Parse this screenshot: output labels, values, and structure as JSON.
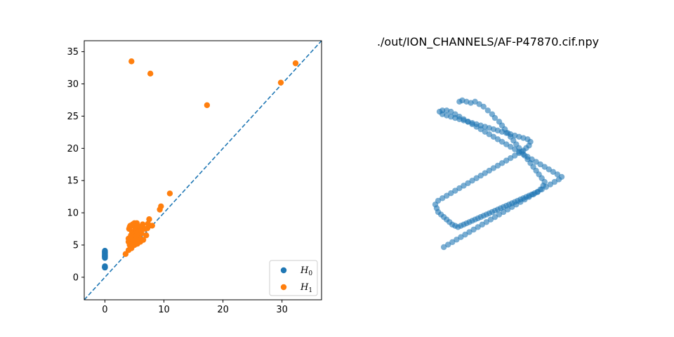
{
  "chart_data": [
    {
      "type": "scatter",
      "title": "",
      "xlabel": "",
      "ylabel": "",
      "xlim": [
        -3.5,
        36.7
      ],
      "ylim": [
        -3.5,
        36.7
      ],
      "xticks": [
        0,
        10,
        20,
        30
      ],
      "yticks": [
        0,
        5,
        10,
        15,
        20,
        25,
        30,
        35
      ],
      "diagonal": {
        "style": "dashed",
        "color": "#1f77b4"
      },
      "legend_placement": "lower-right",
      "series": [
        {
          "name": "H",
          "name_sub": "0",
          "color": "#1f77b4",
          "x": [
            0,
            0,
            0,
            0,
            0,
            0,
            0,
            0,
            0,
            0,
            0,
            0,
            0,
            0,
            0,
            0,
            0
          ],
          "y": [
            1.5,
            1.6,
            1.7,
            3.0,
            3.1,
            3.2,
            3.3,
            3.4,
            3.5,
            3.6,
            3.7,
            3.8,
            3.9,
            4.0,
            4.1,
            1.55,
            3.25
          ]
        },
        {
          "name": "H",
          "name_sub": "1",
          "color": "#ff7f0e",
          "x": [
            4.5,
            7.7,
            17.3,
            29.8,
            32.3,
            11.0,
            9.5,
            9.3,
            7.5,
            7.3,
            8.0,
            3.5,
            4.0,
            4.5,
            5.0,
            5.5,
            6.0,
            6.5,
            7.0,
            4.2,
            4.8,
            5.2,
            5.8,
            6.2,
            4.0,
            4.4,
            4.6,
            5.0,
            5.3,
            5.6,
            6.0,
            6.4,
            4.1,
            4.3,
            4.7,
            5.1,
            5.4,
            4.0,
            4.5,
            4.9,
            5.2,
            5.7,
            6.1,
            4.2,
            4.6,
            5.0,
            5.5,
            6.8,
            7.2,
            4.4,
            4.8,
            5.3
          ],
          "y": [
            33.5,
            31.6,
            26.7,
            30.2,
            33.2,
            13.0,
            11.0,
            10.5,
            9.0,
            8.3,
            8.0,
            3.6,
            4.2,
            4.5,
            5.0,
            5.2,
            5.5,
            5.8,
            6.5,
            5.0,
            5.5,
            6.0,
            6.2,
            6.8,
            6.0,
            6.5,
            7.0,
            7.2,
            7.0,
            7.5,
            7.8,
            8.2,
            7.5,
            8.0,
            8.2,
            7.8,
            8.4,
            5.5,
            6.0,
            6.5,
            6.8,
            7.0,
            7.2,
            7.8,
            8.0,
            8.4,
            8.0,
            7.5,
            7.6,
            4.8,
            5.8,
            6.4
          ]
        }
      ]
    },
    {
      "type": "scatter",
      "title": "./out/ION_CHANNELS/AF-P47870.cif.npy",
      "xlabel": "",
      "ylabel": "",
      "axis_visible": false,
      "color": "#1f77b4",
      "note": "3D protein backbone point cloud, points projected to 2D",
      "x": [
        2.0,
        2.2,
        2.5,
        2.8,
        3.1,
        3.4,
        3.7,
        4.0,
        4.3,
        4.5,
        4.8,
        5.0,
        5.2,
        5.4,
        5.6,
        5.8,
        6.0,
        6.2,
        6.4,
        6.6,
        6.8,
        7.0,
        7.2,
        7.4,
        7.6,
        7.8,
        8.0,
        7.9,
        7.7,
        7.5,
        7.3,
        7.1,
        6.9,
        6.7,
        6.5,
        6.3,
        6.1,
        5.9,
        5.7,
        5.5,
        5.3,
        5.1,
        4.9,
        4.7,
        4.5,
        4.3,
        4.1,
        3.9,
        3.7,
        3.5,
        3.3,
        3.1,
        2.9,
        2.7,
        2.5,
        2.3,
        2.1,
        1.9,
        1.7,
        1.5,
        1.3,
        1.1,
        0.9,
        0.7,
        0.5,
        0.4,
        0.3,
        0.5,
        0.8,
        1.1,
        1.4,
        1.7,
        2.0,
        2.3,
        2.6,
        2.9,
        3.2,
        3.5,
        3.8,
        4.1,
        4.4,
        4.7,
        5.0,
        5.3,
        5.6,
        5.9,
        6.2,
        6.5,
        6.7,
        6.9,
        7.0,
        6.8,
        6.5,
        6.2,
        5.9,
        5.6,
        5.3,
        5.0,
        4.7,
        4.4,
        4.1,
        3.8,
        3.5,
        3.2,
        2.9,
        2.6,
        2.3,
        2.0,
        1.7,
        1.4,
        1.1,
        0.8,
        0.6,
        0.8,
        1.1,
        1.4,
        1.7,
        2.0,
        2.3,
        2.6,
        2.9,
        3.2,
        3.5,
        3.8,
        4.1,
        4.4,
        4.7,
        5.0,
        5.3,
        5.6,
        5.9,
        6.2,
        6.5,
        6.8,
        7.1,
        7.4,
        7.7,
        8.0,
        8.3,
        8.6,
        8.9,
        9.2,
        9.0,
        8.7,
        8.4,
        8.1,
        7.8,
        7.5,
        7.2,
        6.9,
        6.6,
        6.3,
        6.0,
        5.7,
        5.4,
        5.1,
        4.8,
        4.5,
        4.2,
        3.9,
        3.6,
        3.3,
        3.0,
        2.7,
        2.4,
        2.1,
        1.8,
        1.5,
        1.2,
        0.9
      ],
      "y": [
        10.0,
        10.1,
        10.0,
        9.9,
        10.0,
        9.8,
        9.6,
        9.3,
        9.0,
        8.7,
        8.4,
        8.1,
        7.8,
        7.5,
        7.2,
        6.9,
        6.6,
        6.3,
        6.0,
        5.7,
        5.4,
        5.1,
        4.8,
        4.5,
        4.2,
        3.9,
        3.6,
        3.3,
        3.0,
        2.8,
        2.7,
        2.6,
        2.5,
        2.4,
        2.3,
        2.2,
        2.1,
        2.0,
        1.9,
        1.8,
        1.7,
        1.6,
        1.5,
        1.4,
        1.3,
        1.2,
        1.1,
        1.0,
        0.9,
        0.8,
        0.7,
        0.6,
        0.5,
        0.4,
        0.3,
        0.2,
        0.1,
        0.0,
        0.1,
        0.2,
        0.4,
        0.6,
        0.8,
        1.0,
        1.2,
        1.5,
        1.8,
        2.1,
        2.3,
        2.5,
        2.7,
        2.9,
        3.1,
        3.3,
        3.5,
        3.7,
        3.9,
        4.1,
        4.3,
        4.5,
        4.7,
        4.9,
        5.1,
        5.3,
        5.5,
        5.7,
        5.9,
        6.1,
        6.3,
        6.5,
        6.8,
        7.0,
        7.1,
        7.2,
        7.3,
        7.4,
        7.5,
        7.6,
        7.7,
        7.8,
        7.9,
        8.0,
        8.1,
        8.2,
        8.3,
        8.4,
        8.5,
        8.6,
        8.7,
        8.8,
        8.9,
        9.0,
        9.2,
        9.3,
        9.3,
        9.2,
        9.0,
        8.8,
        8.6,
        8.4,
        8.2,
        8.0,
        7.8,
        7.6,
        7.4,
        7.2,
        7.0,
        6.8,
        6.6,
        6.4,
        6.2,
        6.0,
        5.8,
        5.6,
        5.4,
        5.2,
        5.0,
        4.8,
        4.6,
        4.4,
        4.2,
        4.0,
        3.8,
        3.6,
        3.4,
        3.2,
        3.0,
        2.8,
        2.6,
        2.4,
        2.2,
        2.0,
        1.8,
        1.6,
        1.4,
        1.2,
        1.0,
        0.8,
        0.6,
        0.4,
        0.2,
        0.0,
        -0.2,
        -0.4,
        -0.6,
        -0.8,
        -1.0,
        -1.2,
        -1.4,
        -1.6
      ]
    }
  ]
}
